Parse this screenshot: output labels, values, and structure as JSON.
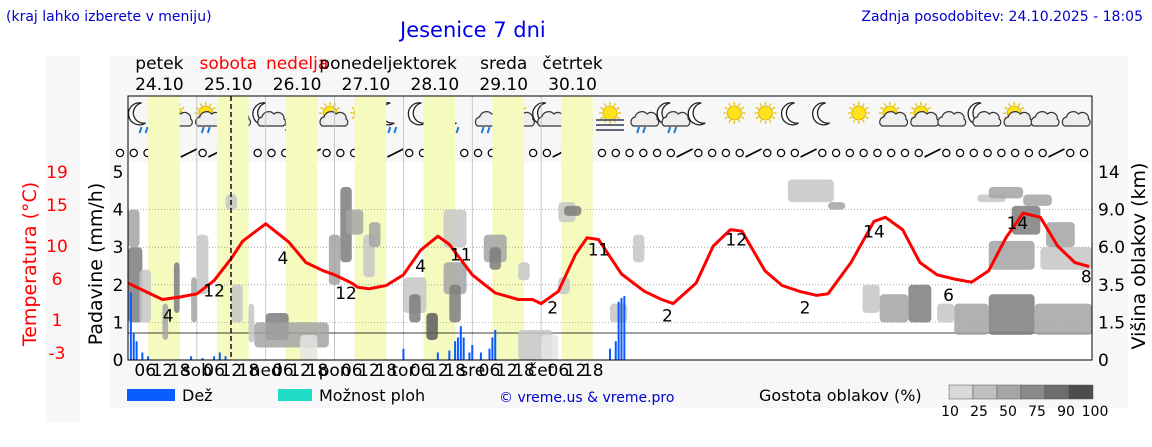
{
  "header": {
    "left_note": "(kraj lahko izberete v meniju)",
    "title": "Jesenice 7 dni",
    "updated": "Zadnja posodobitev: 24.10.2025 - 18:05"
  },
  "days": [
    {
      "name": "petek",
      "date": "24.10",
      "color": "#000000",
      "short": ""
    },
    {
      "name": "sobota",
      "date": "25.10",
      "color": "#ff0000",
      "short": "sob"
    },
    {
      "name": "nedelja",
      "date": "26.10",
      "color": "#ff0000",
      "short": "ned"
    },
    {
      "name": "ponedeljek",
      "date": "27.10",
      "color": "#000000",
      "short": "pon"
    },
    {
      "name": "torek",
      "date": "28.10",
      "color": "#000000",
      "short": "tor"
    },
    {
      "name": "sreda",
      "date": "29.10",
      "color": "#000000",
      "short": "sre"
    },
    {
      "name": "četrtek",
      "date": "30.10",
      "color": "#000000",
      "short": "čet"
    }
  ],
  "hour_ticks": [
    "06",
    "12",
    "18"
  ],
  "axes": {
    "left_temp_label": "Temperatura (°C)",
    "left_temp_ticks": [
      "19",
      "15",
      "10",
      "6",
      "1",
      "-3"
    ],
    "left_precip_label": "Padavine (mm/h)",
    "left_precip_ticks": [
      "5",
      "4",
      "3",
      "2",
      "1",
      "0"
    ],
    "right_label": "Višina oblakov (km)",
    "right_ticks": [
      "14",
      "9.0",
      "6.0",
      "3.5",
      "1.5",
      "0"
    ]
  },
  "legend": {
    "rain": "Dež",
    "storm": "Možnost ploh",
    "credit": "© vreme.us & vreme.pro",
    "cloud_density": "Gostota oblakov (%)",
    "density_steps": [
      "10",
      "25",
      "50",
      "75",
      "90",
      "100"
    ]
  },
  "colors": {
    "temperature": "#ff0000",
    "rain": "#0a5cff",
    "storm": "#1fdcc8",
    "daylight": "#f5fabf",
    "title": "#0000ee",
    "header_links": "#0000cc"
  },
  "icons": [
    "moon-rain-icon",
    "sun-cloud-rain-icon",
    "sun-cloud-rain-icon",
    "cloud-icon",
    "moon-cloud-icon",
    "fog-icon",
    "sun-cloud-icon",
    "sun-icon",
    "moon-rain-icon",
    "moon-icon",
    "moon-rain-icon",
    "cloud-rain-icon",
    "sun-cloud-icon",
    "moon-cloud-icon",
    "moon-fog-icon",
    "sun-fog-icon",
    "cloud-rain-icon",
    "moon-cloud-rain-icon",
    "moon-icon",
    "sun-icon",
    "sun-icon",
    "moon-icon",
    "moon-icon",
    "sun-icon",
    "sun-cloud-icon",
    "sun-cloud-icon",
    "cloud-icon",
    "moon-cloud-icon",
    "sun-cloud-icon",
    "cloud-icon",
    "cloud-icon"
  ],
  "chart_data": {
    "type": "line",
    "x_unit": "hours since 24.10 00:00",
    "temperature": {
      "points": [
        [
          0,
          5.5
        ],
        [
          12,
          3.5
        ],
        [
          18,
          3.8
        ],
        [
          24,
          4.2
        ],
        [
          30,
          5.8
        ],
        [
          36,
          8.5
        ],
        [
          40,
          10.6
        ],
        [
          48,
          12.7
        ],
        [
          56,
          10.5
        ],
        [
          62,
          8
        ],
        [
          68,
          7
        ],
        [
          72,
          6.5
        ],
        [
          78,
          5.5
        ],
        [
          80,
          5
        ],
        [
          84,
          4.8
        ],
        [
          90,
          5.2
        ],
        [
          96,
          6.5
        ],
        [
          102,
          9.5
        ],
        [
          108,
          11.2
        ],
        [
          112,
          10.2
        ],
        [
          120,
          6.5
        ],
        [
          128,
          4.3
        ],
        [
          136,
          3.5
        ],
        [
          141,
          3.5
        ],
        [
          144,
          3
        ],
        [
          150,
          4.5
        ],
        [
          156,
          9
        ],
        [
          160,
          11
        ],
        [
          164,
          10.8
        ],
        [
          172,
          6.6
        ],
        [
          180,
          4.5
        ],
        [
          186,
          3.5
        ],
        [
          190,
          3
        ],
        [
          198,
          5.5
        ],
        [
          204,
          10
        ],
        [
          210,
          12
        ],
        [
          214,
          11.8
        ],
        [
          222,
          7
        ],
        [
          228,
          5.2
        ],
        [
          234,
          4.5
        ],
        [
          240,
          4.0
        ],
        [
          244,
          4.2
        ],
        [
          252,
          8
        ],
        [
          260,
          13
        ],
        [
          264,
          13.5
        ],
        [
          270,
          12
        ],
        [
          276,
          8
        ],
        [
          282,
          6.5
        ],
        [
          288,
          6.0
        ],
        [
          294,
          5.6
        ],
        [
          300,
          7
        ],
        [
          306,
          11
        ],
        [
          312,
          14
        ],
        [
          318,
          13.5
        ],
        [
          324,
          10
        ],
        [
          330,
          8
        ],
        [
          335,
          7.5
        ]
      ],
      "labels": [
        [
          14,
          "4"
        ],
        [
          30,
          "12"
        ],
        [
          54,
          "4"
        ],
        [
          76,
          "12"
        ],
        [
          102,
          "4"
        ],
        [
          116,
          "11"
        ],
        [
          148,
          "2"
        ],
        [
          164,
          "11"
        ],
        [
          188,
          "2"
        ],
        [
          212,
          "12"
        ],
        [
          236,
          "2"
        ],
        [
          260,
          "14"
        ],
        [
          286,
          "6"
        ],
        [
          310,
          "14"
        ],
        [
          334,
          "8"
        ]
      ]
    },
    "rain_mm_h": [
      [
        1,
        1.8
      ],
      [
        2,
        0.7
      ],
      [
        3,
        0.5
      ],
      [
        5,
        0.2
      ],
      [
        7,
        0.1
      ],
      [
        22,
        0.1
      ],
      [
        26,
        0.05
      ],
      [
        30,
        0.1
      ],
      [
        32,
        0.2
      ],
      [
        34,
        0.1
      ],
      [
        96,
        0.3
      ],
      [
        108,
        0.2
      ],
      [
        112,
        0.25
      ],
      [
        114,
        0.5
      ],
      [
        115,
        0.6
      ],
      [
        116,
        0.9
      ],
      [
        117,
        0.6
      ],
      [
        119,
        0.2
      ],
      [
        120,
        0.4
      ],
      [
        123,
        0.2
      ],
      [
        126,
        0.3
      ],
      [
        127,
        0.6
      ],
      [
        128,
        0.8
      ],
      [
        168,
        0.3
      ],
      [
        170,
        0.5
      ],
      [
        171,
        1.55
      ],
      [
        172,
        1.65
      ],
      [
        173,
        1.7
      ]
    ],
    "storm_mm_h": [],
    "cloud_cells": [
      [
        0,
        5,
        1.5,
        6.0,
        75
      ],
      [
        0,
        4,
        6.0,
        9.0,
        50
      ],
      [
        4,
        8,
        1.5,
        4.5,
        25
      ],
      [
        12,
        14,
        0.8,
        2.5,
        50
      ],
      [
        16,
        18,
        2,
        5,
        75
      ],
      [
        22,
        24,
        1.5,
        4,
        50
      ],
      [
        24,
        28,
        3,
        7,
        25
      ],
      [
        34,
        38,
        9,
        11,
        25
      ],
      [
        36,
        40,
        1.5,
        3.5,
        25
      ],
      [
        42,
        44,
        0.7,
        2.5,
        25
      ],
      [
        48,
        56,
        0.8,
        2,
        75
      ],
      [
        44,
        70,
        0.5,
        1.5,
        50
      ],
      [
        60,
        66,
        0,
        1,
        10
      ],
      [
        70,
        74,
        3.5,
        7,
        50
      ],
      [
        74,
        78,
        5,
        12,
        75
      ],
      [
        76,
        82,
        7,
        9,
        50
      ],
      [
        82,
        86,
        4,
        7,
        25
      ],
      [
        84,
        88,
        6,
        8,
        50
      ],
      [
        96,
        104,
        2,
        4,
        25
      ],
      [
        104,
        108,
        0.8,
        2,
        90
      ],
      [
        98,
        102,
        1.5,
        3,
        75
      ],
      [
        110,
        118,
        3,
        5,
        50
      ],
      [
        112,
        116,
        1.5,
        3.5,
        75
      ],
      [
        110,
        118,
        6,
        9,
        25
      ],
      [
        124,
        132,
        5,
        7,
        50
      ],
      [
        126,
        130,
        4.5,
        6,
        75
      ],
      [
        136,
        140,
        3.8,
        5,
        25
      ],
      [
        136,
        148,
        0,
        1.2,
        25
      ],
      [
        144,
        150,
        0,
        1,
        10
      ],
      [
        150,
        156,
        8,
        10,
        25
      ],
      [
        152,
        158,
        8.5,
        9.5,
        75
      ],
      [
        150,
        154,
        3,
        4,
        25
      ],
      [
        168,
        174,
        1.5,
        2.5,
        25
      ],
      [
        176,
        180,
        5,
        7,
        25
      ],
      [
        230,
        246,
        10,
        13,
        25
      ],
      [
        244,
        250,
        9,
        10,
        50
      ],
      [
        256,
        262,
        2,
        3.5,
        25
      ],
      [
        262,
        272,
        1.5,
        3,
        50
      ],
      [
        272,
        280,
        1.5,
        3.5,
        75
      ],
      [
        282,
        288,
        1.5,
        2.5,
        25
      ],
      [
        288,
        300,
        1,
        2.5,
        50
      ],
      [
        300,
        316,
        1,
        3,
        75
      ],
      [
        316,
        336,
        1,
        2.5,
        50
      ],
      [
        300,
        316,
        4.5,
        6.5,
        50
      ],
      [
        308,
        318,
        7,
        9.5,
        75
      ],
      [
        312,
        322,
        9.5,
        11,
        50
      ],
      [
        318,
        336,
        4.5,
        6,
        25
      ],
      [
        320,
        330,
        6,
        8,
        50
      ],
      [
        296,
        306,
        10,
        11,
        25
      ],
      [
        300,
        312,
        10.5,
        12,
        50
      ]
    ]
  }
}
